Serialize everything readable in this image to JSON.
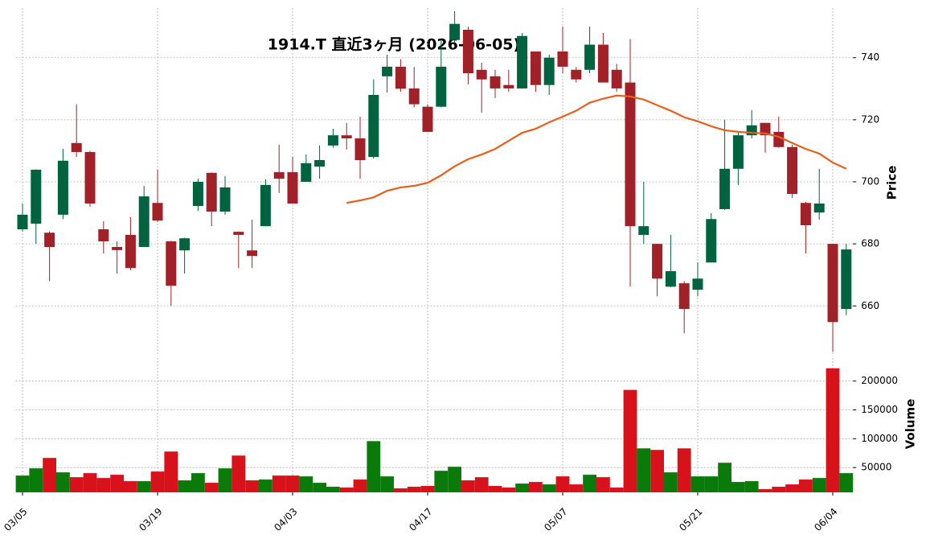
{
  "chart_data": {
    "type": "candlestick",
    "title": "1914.T  直近3ヶ月  (2026-06-05)",
    "categories": [
      "03/05",
      null,
      null,
      null,
      null,
      null,
      null,
      null,
      null,
      null,
      "03/19",
      null,
      null,
      null,
      null,
      null,
      null,
      null,
      null,
      null,
      "04/03",
      null,
      null,
      null,
      null,
      null,
      null,
      null,
      null,
      null,
      "04/17",
      null,
      null,
      null,
      null,
      null,
      null,
      null,
      null,
      null,
      "05/07",
      null,
      null,
      null,
      null,
      null,
      null,
      null,
      null,
      null,
      "05/21",
      null,
      null,
      null,
      null,
      null,
      null,
      null,
      null,
      null,
      "06/04",
      null
    ],
    "open": [
      684.7,
      686.5,
      683.6,
      689.4,
      712.5,
      709.6,
      684.7,
      679,
      682.9,
      679,
      693.2,
      680.8,
      677.9,
      692.2,
      702.9,
      690.4,
      683.9,
      677.9,
      685.7,
      703.1,
      703.1,
      700,
      704.9,
      711.7,
      715,
      714,
      708,
      734,
      737.1,
      730.1,
      724.2,
      724.2,
      745.7,
      749,
      736.1,
      734,
      731.2,
      730.1,
      742,
      731.2,
      742,
      736.1,
      736.1,
      744.2,
      736.1,
      732,
      682.9,
      680,
      666.2,
      667.3,
      665.2,
      674,
      691.2,
      704.2,
      715,
      719,
      716.1,
      711.2,
      693.2,
      690.1,
      680,
      659
    ],
    "high": [
      693,
      704,
      684,
      710.6,
      725,
      710,
      687.3,
      680.8,
      688.6,
      698.7,
      703.9,
      681,
      682,
      701,
      703,
      701.8,
      684,
      687.8,
      700.8,
      712,
      708,
      708.8,
      711.7,
      717.1,
      719,
      721,
      733,
      741,
      739.5,
      737,
      725,
      745.7,
      755,
      750,
      738.4,
      736.1,
      736.1,
      748,
      742,
      741,
      750,
      737,
      750,
      748,
      738,
      746,
      700,
      680,
      682.9,
      668,
      674,
      689.9,
      720,
      716,
      723.1,
      719,
      721,
      712,
      693.5,
      704.2,
      680,
      680
    ],
    "low": [
      684,
      680,
      668,
      688,
      708,
      692,
      676.9,
      670.4,
      671.5,
      679,
      687,
      660,
      670.4,
      690.6,
      685.7,
      689.4,
      672.2,
      672.2,
      685.7,
      696.4,
      693,
      700,
      701,
      711,
      710.4,
      701,
      707.5,
      728.8,
      729,
      724,
      716,
      724,
      745,
      731.4,
      722.3,
      727,
      729,
      730,
      729,
      728,
      735,
      732,
      735,
      732,
      729,
      666.2,
      680,
      663.1,
      666,
      651.2,
      663.1,
      674,
      691,
      699,
      714,
      709.4,
      711,
      694.8,
      676.9,
      687.8,
      645.2,
      657
    ],
    "close": [
      689.4,
      703.9,
      679,
      706.8,
      709.6,
      693,
      680.8,
      678,
      672.2,
      695.3,
      687.5,
      666.5,
      681.8,
      700,
      690.4,
      698.2,
      682.9,
      676.1,
      699,
      701,
      693,
      706,
      707,
      715,
      714,
      707,
      728,
      737.1,
      730,
      725,
      716.1,
      737.1,
      750.9,
      735,
      733,
      730.1,
      730.1,
      747,
      731.2,
      740,
      737.1,
      733,
      744.2,
      732,
      730.1,
      685.7,
      685.7,
      668.8,
      671.2,
      659,
      668.8,
      688,
      704.2,
      715,
      718.2,
      715,
      711.2,
      696.1,
      686,
      693,
      654.8,
      678.2
    ],
    "up_color": "#006340",
    "down_color": "#a02128",
    "ma": {
      "color": "#e8601c",
      "values": [
        null,
        null,
        null,
        null,
        null,
        null,
        null,
        null,
        null,
        null,
        null,
        null,
        null,
        null,
        null,
        null,
        null,
        null,
        null,
        null,
        null,
        null,
        null,
        null,
        693.2,
        694,
        695,
        697.1,
        698.2,
        698.7,
        699.7,
        702.1,
        705,
        707.3,
        708.8,
        710.6,
        713.2,
        715.8,
        717.1,
        719.2,
        721,
        722.9,
        725.5,
        726.8,
        727.8,
        727.5,
        726.5,
        724.7,
        722.9,
        720.8,
        719.5,
        717.9,
        716.6,
        716.1,
        715.8,
        715.6,
        714.5,
        712.5,
        710.6,
        709.1,
        706.2,
        704.2
      ]
    },
    "ylabel": "Price",
    "ylim": [
      644,
      756
    ],
    "yticks": [
      660,
      680,
      700,
      720,
      740
    ],
    "grid": true,
    "volume": {
      "ylabel": "Volume",
      "up_color": "#0a7a0a",
      "down_color": "#d8121b",
      "ylim": [
        7000,
        240000
      ],
      "yticks": [
        50000,
        100000,
        150000,
        200000
      ],
      "values": [
        36100,
        48600,
        66700,
        41700,
        33300,
        40300,
        31900,
        37500,
        26400,
        26400,
        43100,
        77800,
        27800,
        40300,
        23600,
        48600,
        70800,
        27800,
        29200,
        36100,
        36100,
        34700,
        23600,
        16700,
        15300,
        29200,
        95800,
        34700,
        13900,
        16700,
        18100,
        44400,
        51400,
        27800,
        33300,
        18100,
        15300,
        22200,
        25000,
        20800,
        34700,
        20800,
        37500,
        33300,
        15300,
        184700,
        83300,
        80600,
        41700,
        83300,
        34700,
        34700,
        58300,
        25000,
        26400,
        12500,
        16700,
        20800,
        29200,
        31900,
        222200,
        40300
      ]
    }
  }
}
